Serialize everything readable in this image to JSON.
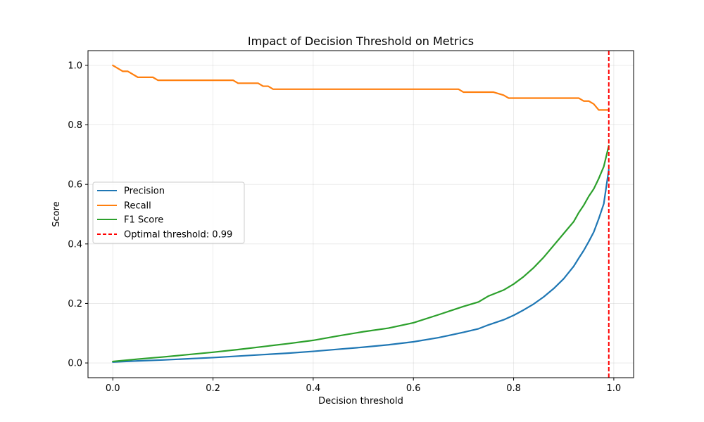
{
  "chart_data": {
    "type": "line",
    "title": "Impact of Decision Threshold on Metrics",
    "xlabel": "Decision threshold",
    "ylabel": "Score",
    "xlim": [
      -0.0495,
      1.0395
    ],
    "ylim": [
      -0.0495,
      1.0495
    ],
    "xticks": [
      0.0,
      0.2,
      0.4,
      0.6,
      0.8,
      1.0
    ],
    "xtick_labels": [
      "0.0",
      "0.2",
      "0.4",
      "0.6",
      "0.8",
      "1.0"
    ],
    "yticks": [
      0.0,
      0.2,
      0.4,
      0.6,
      0.8,
      1.0
    ],
    "ytick_labels": [
      "0.0",
      "0.2",
      "0.4",
      "0.6",
      "0.8",
      "1.0"
    ],
    "grid": true,
    "legend_position": "center-left",
    "series": [
      {
        "name": "Precision",
        "color": "#1f77b4",
        "x": [
          0.0,
          0.05,
          0.1,
          0.15,
          0.2,
          0.25,
          0.3,
          0.35,
          0.4,
          0.45,
          0.5,
          0.55,
          0.6,
          0.65,
          0.7,
          0.73,
          0.75,
          0.78,
          0.8,
          0.82,
          0.84,
          0.86,
          0.88,
          0.9,
          0.92,
          0.93,
          0.94,
          0.95,
          0.96,
          0.97,
          0.98,
          0.99
        ],
        "y": [
          0.003,
          0.007,
          0.01,
          0.014,
          0.018,
          0.023,
          0.028,
          0.033,
          0.039,
          0.046,
          0.053,
          0.061,
          0.071,
          0.085,
          0.103,
          0.115,
          0.128,
          0.145,
          0.16,
          0.178,
          0.198,
          0.222,
          0.25,
          0.283,
          0.325,
          0.352,
          0.378,
          0.408,
          0.44,
          0.485,
          0.535,
          0.65
        ]
      },
      {
        "name": "Recall",
        "color": "#ff7f0e",
        "x": [
          0.0,
          0.02,
          0.03,
          0.05,
          0.08,
          0.09,
          0.24,
          0.25,
          0.29,
          0.3,
          0.31,
          0.32,
          0.69,
          0.7,
          0.76,
          0.78,
          0.79,
          0.93,
          0.94,
          0.95,
          0.96,
          0.97,
          0.99
        ],
        "y": [
          1.0,
          0.98,
          0.98,
          0.96,
          0.96,
          0.95,
          0.95,
          0.94,
          0.94,
          0.93,
          0.93,
          0.92,
          0.92,
          0.91,
          0.91,
          0.9,
          0.89,
          0.89,
          0.88,
          0.88,
          0.87,
          0.85,
          0.85
        ]
      },
      {
        "name": "F1 Score",
        "color": "#2ca02c",
        "x": [
          0.0,
          0.05,
          0.1,
          0.15,
          0.2,
          0.25,
          0.3,
          0.35,
          0.4,
          0.45,
          0.5,
          0.55,
          0.6,
          0.65,
          0.7,
          0.73,
          0.75,
          0.78,
          0.8,
          0.82,
          0.84,
          0.86,
          0.88,
          0.9,
          0.92,
          0.93,
          0.94,
          0.95,
          0.96,
          0.97,
          0.98,
          0.99
        ],
        "y": [
          0.005,
          0.013,
          0.02,
          0.028,
          0.036,
          0.045,
          0.055,
          0.065,
          0.076,
          0.091,
          0.105,
          0.117,
          0.135,
          0.162,
          0.19,
          0.205,
          0.225,
          0.245,
          0.265,
          0.29,
          0.32,
          0.355,
          0.395,
          0.435,
          0.475,
          0.505,
          0.53,
          0.56,
          0.585,
          0.62,
          0.66,
          0.73
        ]
      },
      {
        "name": "Optimal threshold: 0.99",
        "color": "#ff0000",
        "style": "dashed",
        "vline_x": 0.99
      }
    ]
  }
}
